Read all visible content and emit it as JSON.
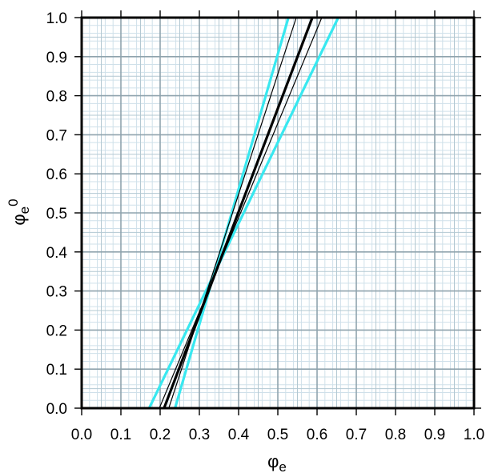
{
  "chart_data": {
    "type": "line",
    "title": "",
    "xlabel": "φe",
    "ylabel": "φe0",
    "xlabel_parts": {
      "symbol": "φ",
      "sub": "e"
    },
    "ylabel_parts": {
      "symbol": "φ",
      "sub": "e",
      "sup": "0"
    },
    "xlim": [
      0.0,
      1.0
    ],
    "ylim": [
      0.0,
      1.0
    ],
    "xticks": [
      "0.0",
      "0.1",
      "0.2",
      "0.3",
      "0.4",
      "0.5",
      "0.6",
      "0.7",
      "0.8",
      "0.9",
      "1.0"
    ],
    "yticks": [
      "0.0",
      "0.1",
      "0.2",
      "0.3",
      "0.4",
      "0.5",
      "0.6",
      "0.7",
      "0.8",
      "0.9",
      "1.0"
    ],
    "grid": true,
    "legend": "none",
    "series": [
      {
        "points": [
          [
            0.172,
            0.0
          ],
          [
            0.654,
            1.0
          ]
        ],
        "color": "#38e8f0",
        "weight": "thick"
      },
      {
        "points": [
          [
            0.238,
            0.0
          ],
          [
            0.527,
            1.0
          ]
        ],
        "color": "#38e8f0",
        "weight": "thick"
      },
      {
        "points": [
          [
            0.198,
            0.0
          ],
          [
            0.612,
            1.0
          ]
        ],
        "color": "#000000",
        "weight": "thin"
      },
      {
        "points": [
          [
            0.222,
            0.0
          ],
          [
            0.547,
            1.0
          ]
        ],
        "color": "#000000",
        "weight": "thin"
      },
      {
        "points": [
          [
            0.21,
            0.0
          ],
          [
            0.588,
            1.0
          ]
        ],
        "color": "#000000",
        "weight": "bold"
      }
    ],
    "colors": {
      "minor_grid": "#cfe0ea",
      "major_grid": "#8fa3ad",
      "frame": "#000000"
    }
  }
}
